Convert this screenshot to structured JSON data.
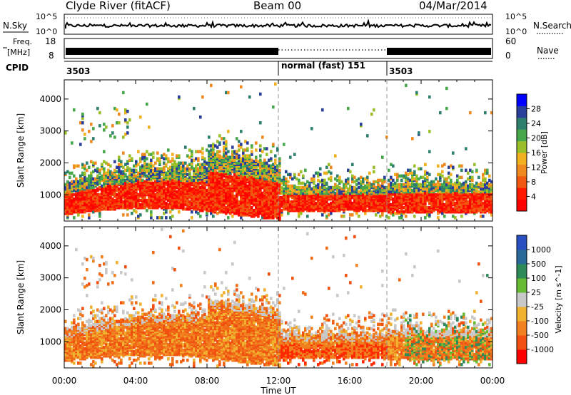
{
  "header": {
    "station": "Clyde River (fitACF)",
    "beam": "Beam 00",
    "date": "04/Mar/2014"
  },
  "sky_panel": {
    "left_label": "N.Sky",
    "right_label": "N.Search",
    "left_ticks": [
      "10^5",
      "10^0"
    ],
    "right_ticks": [
      "10^5",
      "10^0"
    ]
  },
  "freq_panel": {
    "left_label_line1": "Freq.",
    "left_label_line2": "[MHz]",
    "right_label": "Nave",
    "left_ticks": [
      "18",
      "8"
    ],
    "right_ticks": [
      "60",
      "0"
    ]
  },
  "cpid_panel": {
    "label": "CPID",
    "segments": [
      {
        "text": "3503",
        "start_hour": 0
      },
      {
        "text": "normal (fast) 151",
        "start_hour": 12
      },
      {
        "text": "3503",
        "start_hour": 18
      }
    ]
  },
  "x_axis": {
    "label": "Time UT",
    "ticks": [
      "00:00",
      "04:00",
      "08:00",
      "12:00",
      "16:00",
      "20:00",
      "00:00"
    ],
    "range_hours": [
      0,
      24
    ]
  },
  "chart_data": [
    {
      "type": "heatmap",
      "name": "power",
      "ylabel": "Slant Range [km]",
      "ylim": [
        180,
        4600
      ],
      "y_ticks": [
        1000,
        2000,
        3000,
        4000
      ],
      "colorbar_label": "Power [dB]",
      "colorbar_ticks": [
        "4",
        "8",
        "12",
        "16",
        "20",
        "24",
        "28"
      ],
      "colorbar_colors": [
        "#0000ff",
        "#2a3f9a",
        "#2f7f6e",
        "#46a84a",
        "#9bbf2a",
        "#f0b020",
        "#f08a20",
        "#f05a10",
        "#ff1a00",
        "#ff0000"
      ]
    },
    {
      "type": "heatmap",
      "name": "velocity",
      "ylabel": "Slant Range [km]",
      "ylim": [
        180,
        4600
      ],
      "y_ticks": [
        1000,
        2000,
        3000,
        4000
      ],
      "colorbar_label": "Velocity [m s^-1]",
      "colorbar_ticks": [
        "1000",
        "500",
        "100",
        "25",
        "-25",
        "-100",
        "-500",
        "-1000"
      ],
      "colorbar_colors": [
        "#2a4fc0",
        "#2a6a9a",
        "#2f8a5a",
        "#66bb33",
        "#c8c8c8",
        "#f0b030",
        "#f08020",
        "#f05010",
        "#ff0000"
      ]
    }
  ]
}
